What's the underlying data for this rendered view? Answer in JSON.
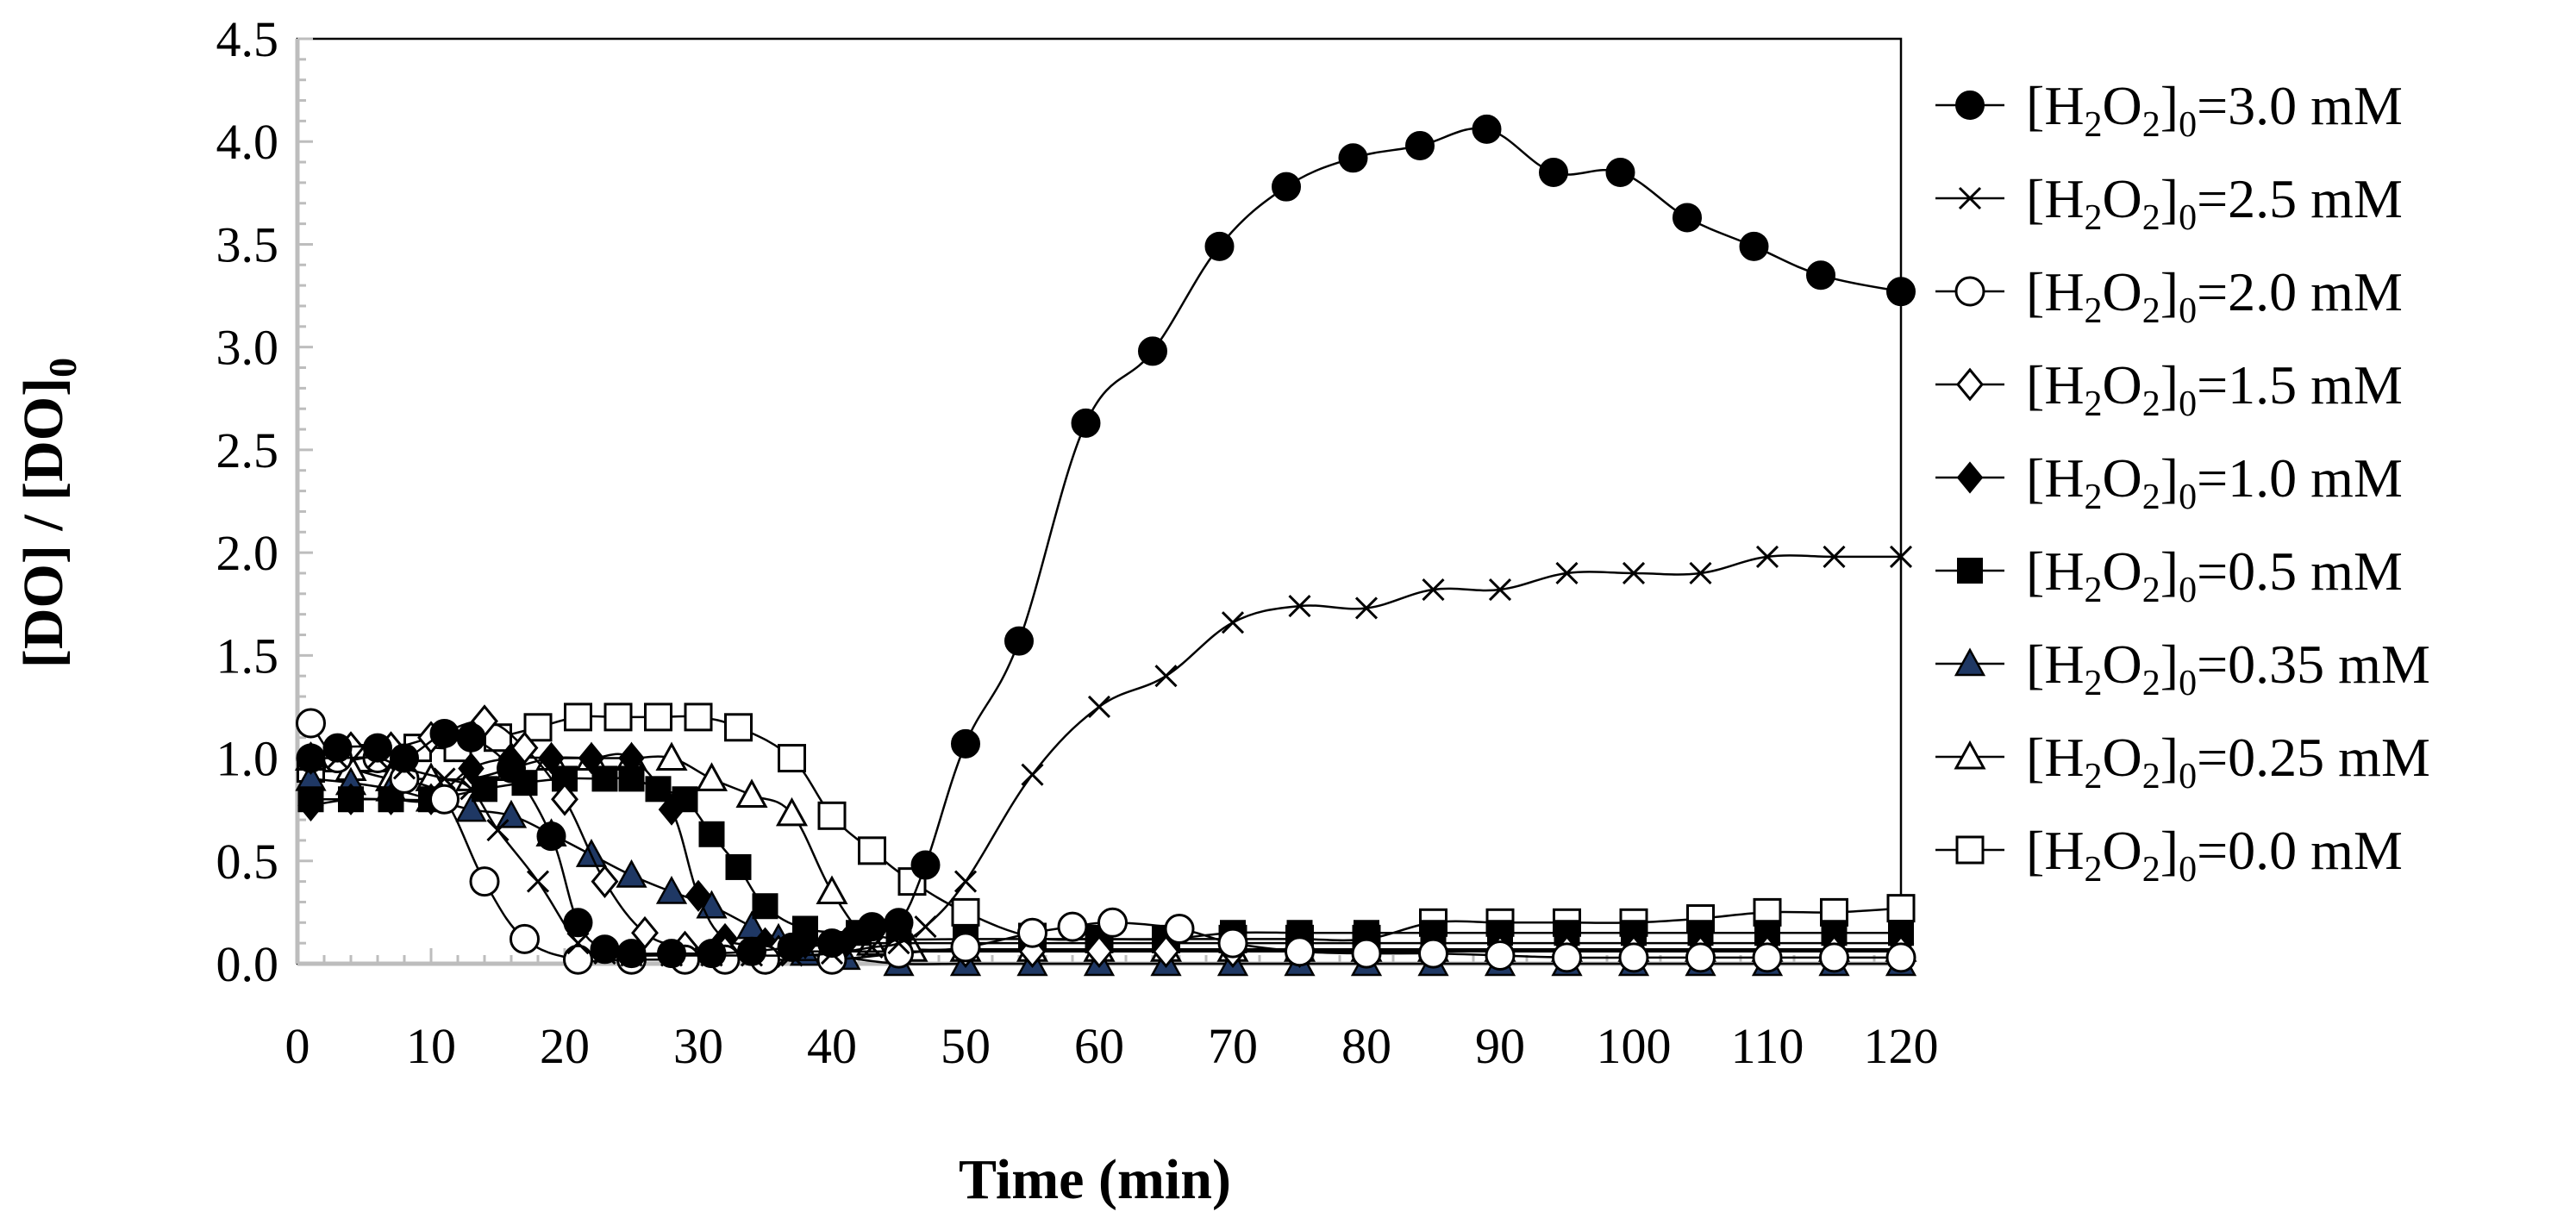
{
  "chart_data": {
    "type": "line",
    "title": "",
    "xlabel": "Time (min)",
    "ylabel_parts": [
      "[DO] / [DO]",
      "0"
    ],
    "xlim": [
      0,
      120
    ],
    "ylim": [
      0,
      4.5
    ],
    "xticks": [
      0,
      10,
      20,
      30,
      40,
      50,
      60,
      70,
      80,
      90,
      100,
      110,
      120
    ],
    "yticks": [
      0.0,
      0.5,
      1.0,
      1.5,
      2.0,
      2.5,
      3.0,
      3.5,
      4.0,
      4.5
    ],
    "ytick_labels": [
      "0.0",
      "0.5",
      "1.0",
      "1.5",
      "2.0",
      "2.5",
      "3.0",
      "3.5",
      "4.0",
      "4.5"
    ],
    "legend_position": "right",
    "series": [
      {
        "name": "[H2O2]0=3.0 mM",
        "label_prefix": "[H",
        "label_sub1": "2",
        "label_mid": "O",
        "label_sub2": "2",
        "label_close": "]",
        "label_sub3": "0",
        "label_value": "=3.0 mM",
        "marker": "circle-filled",
        "x": [
          1,
          3,
          6,
          8,
          11,
          13,
          16,
          19,
          21,
          23,
          25,
          28,
          31,
          34,
          37,
          40,
          43,
          45,
          47,
          50,
          54,
          59,
          64,
          69,
          74,
          79,
          84,
          89,
          94,
          99,
          104,
          109,
          114,
          120
        ],
        "y": [
          1.0,
          1.05,
          1.05,
          1.0,
          1.12,
          1.1,
          0.95,
          0.62,
          0.2,
          0.07,
          0.05,
          0.05,
          0.05,
          0.06,
          0.08,
          0.1,
          0.18,
          0.2,
          0.48,
          1.07,
          1.57,
          2.63,
          2.98,
          3.49,
          3.78,
          3.92,
          3.98,
          4.06,
          3.85,
          3.85,
          3.63,
          3.49,
          3.35,
          3.27
        ]
      },
      {
        "name": "[H2O2]0=2.5 mM",
        "label_prefix": "[H",
        "label_sub1": "2",
        "label_mid": "O",
        "label_sub2": "2",
        "label_close": "]",
        "label_sub3": "0",
        "label_value": "=2.5 mM",
        "marker": "x",
        "x": [
          1,
          3,
          6,
          8,
          11,
          13,
          15,
          18,
          21,
          23,
          25,
          28,
          31,
          34,
          37,
          40,
          43,
          45,
          47,
          50,
          55,
          60,
          65,
          70,
          75,
          80,
          85,
          90,
          95,
          100,
          105,
          110,
          115,
          120
        ],
        "y": [
          1.0,
          1.0,
          1.0,
          0.95,
          0.9,
          0.85,
          0.65,
          0.4,
          0.1,
          0.05,
          0.04,
          0.04,
          0.04,
          0.04,
          0.04,
          0.05,
          0.08,
          0.1,
          0.18,
          0.4,
          0.92,
          1.25,
          1.4,
          1.66,
          1.74,
          1.73,
          1.82,
          1.82,
          1.9,
          1.9,
          1.9,
          1.98,
          1.98,
          1.98
        ]
      },
      {
        "name": "[H2O2]0=2.0 mM",
        "label_prefix": "[H",
        "label_sub1": "2",
        "label_mid": "O",
        "label_sub2": "2",
        "label_close": "]",
        "label_sub3": "0",
        "label_value": "=2.0 mM",
        "marker": "circle-open",
        "x": [
          1,
          3,
          6,
          8,
          11,
          14,
          17,
          21,
          25,
          29,
          32,
          35,
          40,
          45,
          50,
          55,
          58,
          61,
          66,
          70,
          75,
          80,
          85,
          90,
          95,
          100,
          105,
          110,
          115,
          120
        ],
        "y": [
          1.17,
          1.0,
          1.0,
          0.9,
          0.8,
          0.4,
          0.12,
          0.02,
          0.02,
          0.02,
          0.02,
          0.02,
          0.02,
          0.05,
          0.08,
          0.15,
          0.18,
          0.2,
          0.17,
          0.1,
          0.06,
          0.05,
          0.05,
          0.04,
          0.03,
          0.03,
          0.03,
          0.03,
          0.03,
          0.03
        ]
      },
      {
        "name": "[H2O2]0=1.5 mM",
        "label_prefix": "[H",
        "label_sub1": "2",
        "label_mid": "O",
        "label_sub2": "2",
        "label_close": "]",
        "label_sub3": "0",
        "label_value": "=1.5 mM",
        "marker": "diamond-open",
        "x": [
          1,
          4,
          7,
          10,
          14,
          17,
          20,
          23,
          26,
          29,
          32,
          36,
          40,
          45,
          50,
          55,
          60,
          65,
          70,
          75,
          80,
          85,
          90,
          95,
          100,
          105,
          110,
          115,
          120
        ],
        "y": [
          1.0,
          1.05,
          1.05,
          1.1,
          1.18,
          1.05,
          0.8,
          0.4,
          0.15,
          0.08,
          0.06,
          0.06,
          0.06,
          0.06,
          0.06,
          0.06,
          0.06,
          0.06,
          0.06,
          0.06,
          0.06,
          0.06,
          0.06,
          0.06,
          0.06,
          0.06,
          0.06,
          0.06,
          0.06
        ]
      },
      {
        "name": "[H2O2]0=1.0 mM",
        "label_prefix": "[H",
        "label_sub1": "2",
        "label_mid": "O",
        "label_sub2": "2",
        "label_close": "]",
        "label_sub3": "0",
        "label_value": "=1.0 mM",
        "marker": "diamond-filled",
        "x": [
          1,
          4,
          7,
          10,
          13,
          16,
          19,
          22,
          25,
          28,
          30,
          32,
          35,
          38,
          41,
          45,
          50,
          55,
          60,
          65,
          70,
          75,
          80,
          85,
          90,
          95,
          100,
          105,
          110,
          115,
          120
        ],
        "y": [
          0.77,
          0.8,
          0.8,
          0.8,
          0.95,
          1.0,
          1.0,
          1.0,
          1.0,
          0.75,
          0.33,
          0.12,
          0.1,
          0.1,
          0.1,
          0.1,
          0.1,
          0.1,
          0.1,
          0.1,
          0.1,
          0.1,
          0.1,
          0.1,
          0.1,
          0.1,
          0.1,
          0.1,
          0.1,
          0.1,
          0.1
        ]
      },
      {
        "name": "[H2O2]0=0.5 mM",
        "label_prefix": "[H",
        "label_sub1": "2",
        "label_mid": "O",
        "label_sub2": "2",
        "label_close": "]",
        "label_sub3": "0",
        "label_value": "=0.5 mM",
        "marker": "square-filled",
        "x": [
          1,
          4,
          7,
          10,
          14,
          17,
          20,
          23,
          25,
          27,
          29,
          31,
          33,
          35,
          38,
          42,
          45,
          50,
          55,
          60,
          65,
          70,
          75,
          80,
          85,
          90,
          95,
          100,
          105,
          110,
          115,
          120
        ],
        "y": [
          0.8,
          0.8,
          0.8,
          0.8,
          0.85,
          0.88,
          0.9,
          0.9,
          0.9,
          0.85,
          0.8,
          0.63,
          0.47,
          0.28,
          0.17,
          0.15,
          0.12,
          0.12,
          0.12,
          0.12,
          0.12,
          0.15,
          0.15,
          0.15,
          0.15,
          0.15,
          0.15,
          0.15,
          0.15,
          0.15,
          0.15,
          0.15
        ]
      },
      {
        "name": "[H2O2]0=0.35 mM",
        "label_prefix": "[H",
        "label_sub1": "2",
        "label_mid": "O",
        "label_sub2": "2",
        "label_close": "]",
        "label_sub3": "0",
        "label_value": "=0.35 mM",
        "marker": "triangle-filled",
        "x": [
          1,
          4,
          7,
          10,
          13,
          16,
          19,
          22,
          25,
          28,
          31,
          34,
          36,
          38,
          41,
          45,
          50,
          55,
          60,
          65,
          70,
          75,
          80,
          85,
          90,
          95,
          100,
          105,
          110,
          115,
          120
        ],
        "y": [
          0.9,
          0.88,
          0.85,
          0.8,
          0.75,
          0.72,
          0.63,
          0.53,
          0.43,
          0.35,
          0.28,
          0.18,
          0.12,
          0.05,
          0.03,
          0.0,
          0.0,
          0.0,
          0.0,
          0.0,
          0.0,
          0.0,
          0.0,
          0.0,
          0.0,
          0.0,
          0.0,
          0.0,
          0.0,
          0.0,
          0.0
        ]
      },
      {
        "name": "[H2O2]0=0.25 mM",
        "label_prefix": "[H",
        "label_sub1": "2",
        "label_mid": "O",
        "label_sub2": "2",
        "label_close": "]",
        "label_sub3": "0",
        "label_value": "=0.25 mM",
        "marker": "triangle-open",
        "x": [
          1,
          4,
          7,
          10,
          13,
          16,
          19,
          22,
          25,
          28,
          31,
          34,
          37,
          40,
          43,
          46,
          50,
          55,
          60,
          65,
          70,
          75,
          80,
          85,
          90,
          95,
          100,
          105,
          110,
          115,
          120
        ],
        "y": [
          1.0,
          0.95,
          0.9,
          0.9,
          0.9,
          0.95,
          1.0,
          1.0,
          1.0,
          1.0,
          0.9,
          0.82,
          0.73,
          0.35,
          0.1,
          0.07,
          0.07,
          0.07,
          0.07,
          0.07,
          0.07,
          0.07,
          0.07,
          0.07,
          0.07,
          0.07,
          0.07,
          0.07,
          0.07,
          0.07,
          0.07
        ]
      },
      {
        "name": "[H2O2]0=0.0 mM",
        "label_prefix": "[H",
        "label_sub1": "2",
        "label_mid": "O",
        "label_sub2": "2",
        "label_close": "]",
        "label_sub3": "0",
        "label_value": "=0.0 mM",
        "marker": "square-open",
        "x": [
          1,
          3,
          5,
          7,
          9,
          12,
          15,
          18,
          21,
          24,
          27,
          30,
          33,
          37,
          40,
          43,
          46,
          50,
          55,
          60,
          65,
          70,
          75,
          80,
          85,
          90,
          95,
          100,
          105,
          110,
          115,
          120
        ],
        "y": [
          0.95,
          1.0,
          1.0,
          1.0,
          1.05,
          1.05,
          1.1,
          1.15,
          1.2,
          1.2,
          1.2,
          1.2,
          1.15,
          1.0,
          0.72,
          0.55,
          0.4,
          0.25,
          0.13,
          0.12,
          0.12,
          0.12,
          0.12,
          0.12,
          0.2,
          0.2,
          0.2,
          0.2,
          0.22,
          0.25,
          0.25,
          0.27
        ]
      }
    ]
  }
}
